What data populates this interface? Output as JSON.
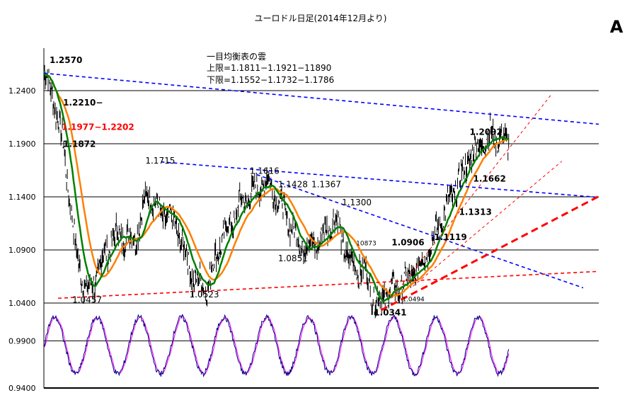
{
  "chart_data": {
    "type": "line",
    "title": "ユーロドル日足(2014年12月より)",
    "corner_label": "A",
    "ichimoku": {
      "title": "一目均衡表の雲",
      "upper": "上限=1.1811−1.1921−11890",
      "lower": "下限=1.1552−1.1732−1.1786"
    },
    "main_ylim": [
      1.04,
      1.28
    ],
    "main_yticks": [
      "1.2400",
      "1.1900",
      "1.1400",
      "1.0900",
      "1.0400"
    ],
    "osc_ylim": [
      0.94,
      1.03
    ],
    "osc_yticks": [
      "0.9900",
      "0.9400"
    ],
    "annotations": [
      {
        "text": "1.2570",
        "bar": 8,
        "price": 1.266,
        "color": "#000000",
        "bold": true
      },
      {
        "text": "1.2210−",
        "bar": 27,
        "price": 1.226,
        "color": "#000000",
        "bold": true
      },
      {
        "text": "1.1977−1.2202",
        "bar": 25,
        "price": 1.203,
        "color": "#ff0000",
        "bold": true
      },
      {
        "text": "1.1872",
        "bar": 27,
        "price": 1.187,
        "color": "#000000",
        "bold": true
      },
      {
        "text": "1.1715",
        "bar": 143,
        "price": 1.1715,
        "color": "#000000",
        "bold": false
      },
      {
        "text": "1.1616",
        "bar": 290,
        "price": 1.1616,
        "color": "#000000",
        "bold": false
      },
      {
        "text": "1.1428",
        "bar": 330,
        "price": 1.1491,
        "color": "#000000",
        "bold": false
      },
      {
        "text": "1.1367",
        "bar": 377,
        "price": 1.1491,
        "color": "#000000",
        "bold": false
      },
      {
        "text": "1.1300",
        "bar": 420,
        "price": 1.1321,
        "color": "#000000",
        "bold": false
      },
      {
        "text": "1.2092",
        "bar": 600,
        "price": 1.1985,
        "color": "#000000",
        "bold": true
      },
      {
        "text": "1.1662",
        "bar": 605,
        "price": 1.1542,
        "color": "#000000",
        "bold": true
      },
      {
        "text": "1.1313",
        "bar": 585,
        "price": 1.1231,
        "color": "#000000",
        "bold": true
      },
      {
        "text": "1.1119",
        "bar": 550,
        "price": 1.0992,
        "color": "#000000",
        "bold": true
      },
      {
        "text": "10873",
        "bar": 440,
        "price": 1.0945,
        "color": "#000000",
        "bold": true,
        "small": true
      },
      {
        "text": "1.0906",
        "bar": 490,
        "price": 1.0945,
        "color": "#000000",
        "bold": true
      },
      {
        "text": "1.0851",
        "bar": 330,
        "price": 1.0792,
        "color": "#000000",
        "bold": false
      },
      {
        "text": "1.0457",
        "bar": 40,
        "price": 1.0402,
        "color": "#000000",
        "bold": false
      },
      {
        "text": "1.0523",
        "bar": 205,
        "price": 1.0453,
        "color": "#000000",
        "bold": false
      },
      {
        "text": "1.0494",
        "bar": 505,
        "price": 1.0418,
        "color": "#000000",
        "bold": false,
        "small": true
      },
      {
        "text": "1.0341",
        "bar": 465,
        "price": 1.0283,
        "color": "#000000",
        "bold": true
      }
    ],
    "trendlines": [
      {
        "color": "#0000ff",
        "dash": "fine",
        "from": [
          0,
          1.2564
        ],
        "to": [
          782,
          1.2084
        ]
      },
      {
        "color": "#0000ff",
        "dash": "fine",
        "from": [
          165,
          1.1729
        ],
        "to": [
          782,
          1.1395
        ]
      },
      {
        "color": "#0000ff",
        "dash": "fine",
        "from": [
          300,
          1.1609
        ],
        "to": [
          760,
          1.0543
        ]
      },
      {
        "color": "#ff0000",
        "dash": "fine",
        "from": [
          20,
          1.0445
        ],
        "to": [
          782,
          1.0698
        ]
      },
      {
        "color": "#ff0000",
        "dash": "coarse",
        "from": [
          475,
          1.0332
        ],
        "to": [
          782,
          1.1405
        ]
      },
      {
        "color": "#ff0000",
        "dash": "thin",
        "from": [
          490,
          1.0445
        ],
        "to": [
          715,
          1.2363
        ]
      },
      {
        "color": "#ff0000",
        "dash": "thin",
        "from": [
          520,
          1.0558
        ],
        "to": [
          730,
          1.1735
        ]
      }
    ]
  }
}
